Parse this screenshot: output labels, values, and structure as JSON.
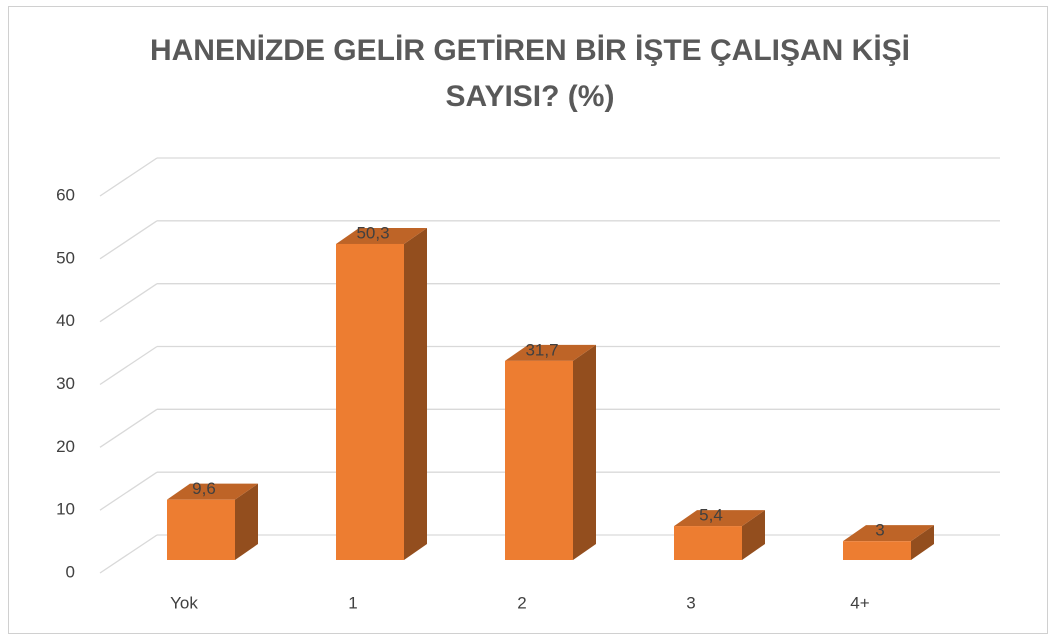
{
  "chart_data": {
    "type": "bar3d",
    "title": "HANENİZDE GELİR GETİREN BİR İŞTE ÇALIŞAN KİŞİ SAYISI? (%)",
    "categories": [
      "Yok",
      "1",
      "2",
      "3",
      "4+"
    ],
    "values": [
      9.6,
      50.3,
      31.7,
      5.4,
      3
    ],
    "value_labels": [
      "9,6",
      "50,3",
      "31,7",
      "5,4",
      "3"
    ],
    "color": "#ed7d31",
    "ylim": [
      0,
      60
    ],
    "yticks": [
      0,
      10,
      20,
      30,
      40,
      50,
      60
    ],
    "grid": true
  }
}
